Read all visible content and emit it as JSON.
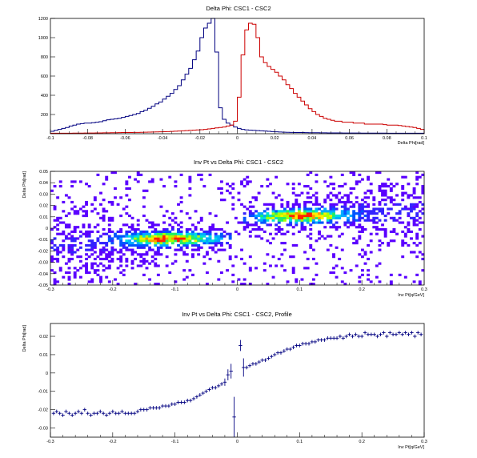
{
  "panels": {
    "top": {
      "title": "Delta Phi: CSC1 - CSC2",
      "xlabel": "Delta Phi[rad]",
      "xticks": [
        "-0.1",
        "-0.08",
        "-0.06",
        "-0.04",
        "-0.02",
        "0",
        "0.02",
        "0.04",
        "0.06",
        "0.08",
        "0.1"
      ],
      "yticks": [
        "200",
        "400",
        "600",
        "800",
        "1000",
        "1200"
      ]
    },
    "middle": {
      "title": "Inv Pt vs Delta Phi: CSC1 - CSC2",
      "xlabel": "Inv Pt[q/GeV]",
      "ylabel": "Delta Phi[rad]",
      "xticks": [
        "-0.3",
        "-0.2",
        "-0.1",
        "0",
        "0.1",
        "0.2",
        "0.3"
      ],
      "yticks": [
        "-0.05",
        "-0.04",
        "-0.03",
        "-0.02",
        "-0.01",
        "0",
        "0.01",
        "0.02",
        "0.03",
        "0.04",
        "0.05"
      ]
    },
    "bottom": {
      "title": "Inv Pt vs Delta Phi: CSC1 - CSC2, Profile",
      "xlabel": "Inv Pt[q/GeV]",
      "ylabel": "Delta Phi[rad]",
      "xticks": [
        "-0.3",
        "-0.2",
        "-0.1",
        "0",
        "0.1",
        "0.2",
        "0.3"
      ],
      "yticks": [
        "-0.03",
        "-0.02",
        "-0.01",
        "0",
        "0.01",
        "0.02"
      ]
    }
  },
  "colors": {
    "blue_hist": "#000080",
    "red_hist": "#cc0000",
    "profile": "#000080"
  },
  "chart_data": [
    {
      "type": "line",
      "title": "Delta Phi: CSC1 - CSC2",
      "xlabel": "Delta Phi[rad]",
      "ylabel": "",
      "xlim": [
        -0.1,
        0.1
      ],
      "ylim": [
        0,
        1200
      ],
      "series": [
        {
          "color": "#000080",
          "x": [
            -0.1,
            -0.098,
            -0.096,
            -0.094,
            -0.092,
            -0.09,
            -0.088,
            -0.086,
            -0.084,
            -0.082,
            -0.08,
            -0.078,
            -0.076,
            -0.074,
            -0.072,
            -0.07,
            -0.068,
            -0.066,
            -0.064,
            -0.062,
            -0.06,
            -0.058,
            -0.056,
            -0.054,
            -0.052,
            -0.05,
            -0.048,
            -0.046,
            -0.044,
            -0.042,
            -0.04,
            -0.038,
            -0.036,
            -0.034,
            -0.032,
            -0.03,
            -0.028,
            -0.026,
            -0.024,
            -0.022,
            -0.02,
            -0.018,
            -0.016,
            -0.014,
            -0.012,
            -0.01,
            -0.008,
            -0.006,
            -0.004,
            -0.002,
            0,
            0.002,
            0.004,
            0.006,
            0.008,
            0.01,
            0.012,
            0.014,
            0.016,
            0.018,
            0.02,
            0.022,
            0.024,
            0.026,
            0.028,
            0.03,
            0.032,
            0.034,
            0.036,
            0.038,
            0.04,
            0.042,
            0.044,
            0.046,
            0.048,
            0.05,
            0.052,
            0.054,
            0.056,
            0.058,
            0.06,
            0.062,
            0.064,
            0.066,
            0.068,
            0.07,
            0.072,
            0.074,
            0.076,
            0.078,
            0.08,
            0.082,
            0.084,
            0.086,
            0.088,
            0.09,
            0.092,
            0.094,
            0.096,
            0.098
          ],
          "values": [
            25,
            35,
            45,
            55,
            65,
            80,
            90,
            100,
            105,
            110,
            110,
            115,
            120,
            125,
            135,
            145,
            150,
            155,
            160,
            170,
            180,
            190,
            200,
            210,
            230,
            245,
            265,
            285,
            310,
            330,
            360,
            390,
            420,
            460,
            500,
            560,
            620,
            680,
            770,
            860,
            1000,
            1100,
            1150,
            1200,
            850,
            270,
            150,
            110,
            90,
            70,
            55,
            45,
            40,
            38,
            35,
            32,
            30,
            28,
            25,
            22,
            20,
            18,
            16,
            15,
            14,
            13,
            12,
            12,
            11,
            10,
            10,
            10,
            9,
            9,
            8,
            8,
            8,
            8,
            7,
            7,
            7,
            7,
            7,
            6,
            6,
            6,
            6,
            6,
            6,
            6,
            5,
            5,
            5,
            5,
            5,
            5,
            5,
            5,
            5,
            5
          ]
        },
        {
          "color": "#cc0000",
          "x": [
            -0.1,
            -0.098,
            -0.096,
            -0.094,
            -0.092,
            -0.09,
            -0.088,
            -0.086,
            -0.084,
            -0.082,
            -0.08,
            -0.078,
            -0.076,
            -0.074,
            -0.072,
            -0.07,
            -0.068,
            -0.066,
            -0.064,
            -0.062,
            -0.06,
            -0.058,
            -0.056,
            -0.054,
            -0.052,
            -0.05,
            -0.048,
            -0.046,
            -0.044,
            -0.042,
            -0.04,
            -0.038,
            -0.036,
            -0.034,
            -0.032,
            -0.03,
            -0.028,
            -0.026,
            -0.024,
            -0.022,
            -0.02,
            -0.018,
            -0.016,
            -0.014,
            -0.012,
            -0.01,
            -0.008,
            -0.006,
            -0.004,
            -0.002,
            0,
            0.002,
            0.004,
            0.006,
            0.008,
            0.01,
            0.012,
            0.014,
            0.016,
            0.018,
            0.02,
            0.022,
            0.024,
            0.026,
            0.028,
            0.03,
            0.032,
            0.034,
            0.036,
            0.038,
            0.04,
            0.042,
            0.044,
            0.046,
            0.048,
            0.05,
            0.052,
            0.054,
            0.056,
            0.058,
            0.06,
            0.062,
            0.064,
            0.066,
            0.068,
            0.07,
            0.072,
            0.074,
            0.076,
            0.078,
            0.08,
            0.082,
            0.084,
            0.086,
            0.088,
            0.09,
            0.092,
            0.094,
            0.096,
            0.098
          ],
          "values": [
            5,
            5,
            5,
            5,
            5,
            5,
            6,
            6,
            6,
            7,
            7,
            7,
            8,
            8,
            9,
            9,
            10,
            10,
            11,
            12,
            12,
            13,
            14,
            14,
            15,
            16,
            17,
            18,
            19,
            20,
            21,
            22,
            24,
            26,
            28,
            30,
            32,
            35,
            38,
            40,
            42,
            45,
            50,
            55,
            60,
            65,
            70,
            80,
            90,
            130,
            380,
            820,
            1080,
            1150,
            1140,
            1000,
            800,
            740,
            700,
            670,
            640,
            600,
            560,
            510,
            470,
            420,
            380,
            340,
            300,
            260,
            230,
            200,
            180,
            160,
            150,
            140,
            130,
            130,
            120,
            120,
            120,
            110,
            110,
            110,
            100,
            100,
            100,
            100,
            100,
            95,
            90,
            90,
            90,
            85,
            80,
            75,
            70,
            65,
            55,
            45
          ]
        }
      ]
    },
    {
      "type": "heatmap",
      "title": "Inv Pt vs Delta Phi: CSC1 - CSC2",
      "xlabel": "Inv Pt[q/GeV]",
      "ylabel": "Delta Phi[rad]",
      "xlim": [
        -0.3,
        0.3
      ],
      "ylim": [
        -0.05,
        0.05
      ],
      "bands": [
        {
          "x_range": [
            -0.3,
            -0.01
          ],
          "center_slope": 0.03,
          "center_offset": -0.0075,
          "peak_x": -0.11,
          "peak_y": -0.009
        },
        {
          "x_range": [
            0.01,
            0.3
          ],
          "center_slope": 0.03,
          "center_offset": 0.0075,
          "peak_x": 0.1,
          "peak_y": 0.011
        }
      ]
    },
    {
      "type": "scatter",
      "title": "Inv Pt vs Delta Phi: CSC1 - CSC2, Profile",
      "xlabel": "Inv Pt[q/GeV]",
      "ylabel": "Delta Phi[rad]",
      "xlim": [
        -0.3,
        0.3
      ],
      "ylim": [
        -0.035,
        0.027
      ],
      "x": [
        -0.295,
        -0.29,
        -0.285,
        -0.28,
        -0.275,
        -0.27,
        -0.265,
        -0.26,
        -0.255,
        -0.25,
        -0.245,
        -0.24,
        -0.235,
        -0.23,
        -0.225,
        -0.22,
        -0.215,
        -0.21,
        -0.205,
        -0.2,
        -0.195,
        -0.19,
        -0.185,
        -0.18,
        -0.175,
        -0.17,
        -0.165,
        -0.16,
        -0.155,
        -0.15,
        -0.145,
        -0.14,
        -0.135,
        -0.13,
        -0.125,
        -0.12,
        -0.115,
        -0.11,
        -0.105,
        -0.1,
        -0.095,
        -0.09,
        -0.085,
        -0.08,
        -0.075,
        -0.07,
        -0.065,
        -0.06,
        -0.055,
        -0.05,
        -0.045,
        -0.04,
        -0.035,
        -0.03,
        -0.025,
        -0.02,
        -0.015,
        -0.01,
        -0.005,
        0.005,
        0.01,
        0.015,
        0.02,
        0.025,
        0.03,
        0.035,
        0.04,
        0.045,
        0.05,
        0.055,
        0.06,
        0.065,
        0.07,
        0.075,
        0.08,
        0.085,
        0.09,
        0.095,
        0.1,
        0.105,
        0.11,
        0.115,
        0.12,
        0.125,
        0.13,
        0.135,
        0.14,
        0.145,
        0.15,
        0.155,
        0.16,
        0.165,
        0.17,
        0.175,
        0.18,
        0.185,
        0.19,
        0.195,
        0.2,
        0.205,
        0.21,
        0.215,
        0.22,
        0.225,
        0.23,
        0.235,
        0.24,
        0.245,
        0.25,
        0.255,
        0.26,
        0.265,
        0.27,
        0.275,
        0.28,
        0.285,
        0.29,
        0.295
      ],
      "values": [
        -0.022,
        -0.021,
        -0.022,
        -0.023,
        -0.021,
        -0.022,
        -0.023,
        -0.022,
        -0.021,
        -0.022,
        -0.02,
        -0.022,
        -0.023,
        -0.022,
        -0.022,
        -0.021,
        -0.022,
        -0.023,
        -0.022,
        -0.021,
        -0.022,
        -0.022,
        -0.021,
        -0.022,
        -0.022,
        -0.022,
        -0.022,
        -0.021,
        -0.02,
        -0.02,
        -0.02,
        -0.019,
        -0.019,
        -0.019,
        -0.019,
        -0.018,
        -0.018,
        -0.018,
        -0.017,
        -0.017,
        -0.016,
        -0.016,
        -0.016,
        -0.015,
        -0.015,
        -0.014,
        -0.013,
        -0.012,
        -0.011,
        -0.01,
        -0.009,
        -0.008,
        -0.008,
        -0.007,
        -0.006,
        -0.005,
        -0.001,
        0.001,
        -0.024,
        0.015,
        0.003,
        0.003,
        0.004,
        0.005,
        0.005,
        0.006,
        0.007,
        0.007,
        0.008,
        0.009,
        0.01,
        0.011,
        0.011,
        0.012,
        0.013,
        0.013,
        0.014,
        0.015,
        0.015,
        0.016,
        0.016,
        0.016,
        0.017,
        0.017,
        0.018,
        0.018,
        0.018,
        0.019,
        0.019,
        0.019,
        0.019,
        0.02,
        0.019,
        0.02,
        0.021,
        0.02,
        0.021,
        0.02,
        0.02,
        0.022,
        0.021,
        0.021,
        0.021,
        0.02,
        0.021,
        0.022,
        0.02,
        0.022,
        0.021,
        0.021,
        0.022,
        0.021,
        0.022,
        0.021,
        0.022,
        0.02,
        0.022,
        0.021
      ],
      "errors": [
        0.001,
        0.001,
        0.001,
        0.001,
        0.001,
        0.001,
        0.001,
        0.001,
        0.001,
        0.001,
        0.001,
        0.001,
        0.001,
        0.001,
        0.001,
        0.001,
        0.001,
        0.001,
        0.001,
        0.001,
        0.001,
        0.001,
        0.001,
        0.001,
        0.001,
        0.001,
        0.001,
        0.001,
        0.001,
        0.001,
        0.001,
        0.001,
        0.001,
        0.001,
        0.001,
        0.001,
        0.001,
        0.001,
        0.001,
        0.001,
        0.001,
        0.001,
        0.001,
        0.001,
        0.001,
        0.001,
        0.001,
        0.001,
        0.001,
        0.001,
        0.001,
        0.001,
        0.001,
        0.001,
        0.001,
        0.002,
        0.003,
        0.004,
        0.011,
        0.003,
        0.005,
        0.001,
        0.001,
        0.001,
        0.001,
        0.001,
        0.001,
        0.001,
        0.001,
        0.001,
        0.001,
        0.001,
        0.001,
        0.001,
        0.001,
        0.001,
        0.001,
        0.001,
        0.001,
        0.001,
        0.001,
        0.001,
        0.001,
        0.001,
        0.001,
        0.001,
        0.001,
        0.001,
        0.001,
        0.001,
        0.001,
        0.001,
        0.001,
        0.001,
        0.001,
        0.001,
        0.001,
        0.001,
        0.001,
        0.001,
        0.001,
        0.001,
        0.001,
        0.001,
        0.001,
        0.001,
        0.001,
        0.001,
        0.001,
        0.001,
        0.001,
        0.001,
        0.001,
        0.001,
        0.001,
        0.001,
        0.001,
        0.001
      ]
    }
  ]
}
